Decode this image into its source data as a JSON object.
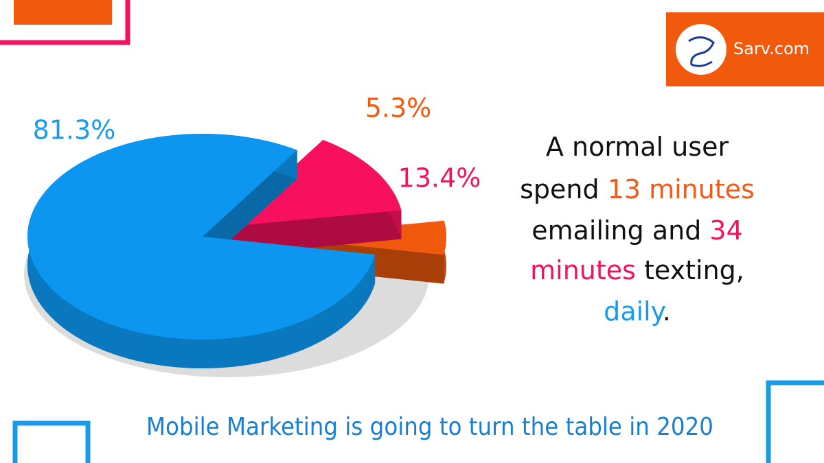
{
  "brand": "Sarv.com",
  "chart_data": {
    "type": "pie",
    "values": [
      81.3,
      13.4,
      5.3
    ],
    "value_labels": [
      "81.3%",
      "13.4%",
      "5.3%"
    ],
    "colors": [
      "#0d96ef",
      "#f7105e",
      "#f15a0c"
    ]
  },
  "statement": {
    "lines": [
      [
        "A normal user"
      ],
      [
        "spend ",
        "13 minutes"
      ],
      [
        "emailing and ",
        "34"
      ],
      [
        "minutes",
        " texting,"
      ],
      [
        "daily",
        "."
      ]
    ]
  },
  "footer": "Mobile Marketing is going to turn the table in 2020"
}
